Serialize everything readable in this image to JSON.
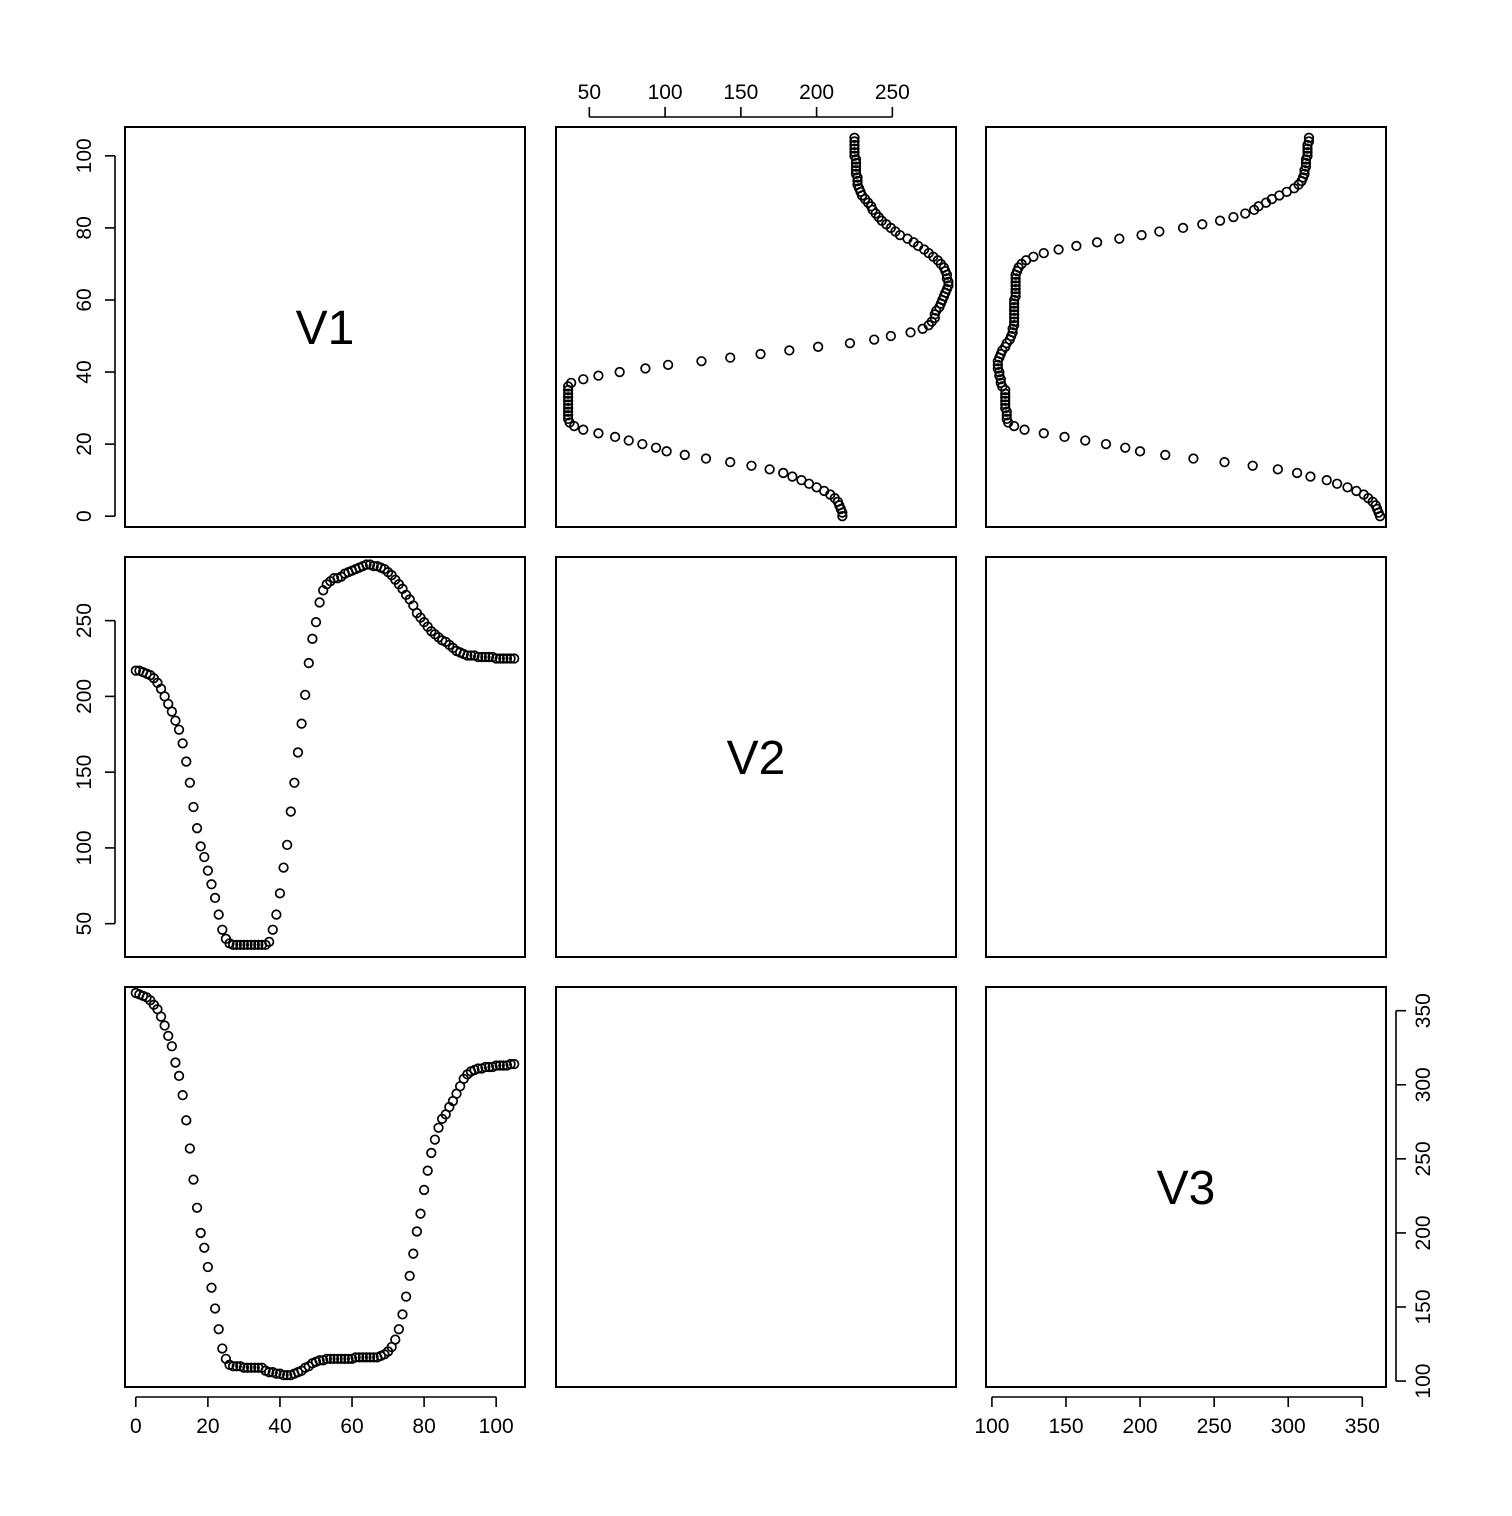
{
  "chart_data": {
    "type": "scatter",
    "variables": [
      "V1",
      "V2",
      "V3"
    ],
    "axes": {
      "V1": {
        "ticks": [
          0,
          20,
          40,
          60,
          80,
          100
        ],
        "range": [
          -3,
          108
        ]
      },
      "V2": {
        "ticks": [
          50,
          100,
          150,
          200,
          250
        ],
        "range": [
          28,
          292
        ]
      },
      "V3": {
        "ticks": [
          100,
          150,
          200,
          250,
          300,
          350
        ],
        "range": [
          96,
          366
        ]
      }
    },
    "axis_placement": {
      "V1": {
        "side": "bottom",
        "label_side": "left"
      },
      "V2": {
        "side": "top",
        "label_side": "left"
      },
      "V3": {
        "side": "bottom",
        "label_side": "right"
      }
    },
    "series": [
      {
        "x_var": "V1",
        "y_var": "V2",
        "points": [
          [
            0,
            217
          ],
          [
            1,
            217
          ],
          [
            2,
            216
          ],
          [
            3,
            215
          ],
          [
            4,
            214
          ],
          [
            5,
            212
          ],
          [
            6,
            209
          ],
          [
            7,
            205
          ],
          [
            8,
            200
          ],
          [
            9,
            195
          ],
          [
            10,
            190
          ],
          [
            11,
            184
          ],
          [
            12,
            178
          ],
          [
            13,
            169
          ],
          [
            14,
            157
          ],
          [
            15,
            143
          ],
          [
            16,
            127
          ],
          [
            17,
            113
          ],
          [
            18,
            101
          ],
          [
            19,
            94
          ],
          [
            20,
            85
          ],
          [
            21,
            76
          ],
          [
            22,
            67
          ],
          [
            23,
            56
          ],
          [
            24,
            46
          ],
          [
            25,
            40
          ],
          [
            26,
            37
          ],
          [
            27,
            36
          ],
          [
            28,
            36
          ],
          [
            29,
            36
          ],
          [
            30,
            36
          ],
          [
            31,
            36
          ],
          [
            32,
            36
          ],
          [
            33,
            36
          ],
          [
            34,
            36
          ],
          [
            35,
            36
          ],
          [
            36,
            36
          ],
          [
            37,
            38
          ],
          [
            38,
            46
          ],
          [
            39,
            56
          ],
          [
            40,
            70
          ],
          [
            41,
            87
          ],
          [
            42,
            102
          ],
          [
            43,
            124
          ],
          [
            44,
            143
          ],
          [
            45,
            163
          ],
          [
            46,
            182
          ],
          [
            47,
            201
          ],
          [
            48,
            222
          ],
          [
            49,
            238
          ],
          [
            50,
            249
          ],
          [
            51,
            262
          ],
          [
            52,
            270
          ],
          [
            53,
            274
          ],
          [
            54,
            276
          ],
          [
            55,
            278
          ],
          [
            56,
            278
          ],
          [
            57,
            279
          ],
          [
            58,
            281
          ],
          [
            59,
            282
          ],
          [
            60,
            283
          ],
          [
            61,
            284
          ],
          [
            62,
            285
          ],
          [
            63,
            286
          ],
          [
            64,
            287
          ],
          [
            65,
            287
          ],
          [
            66,
            286
          ],
          [
            67,
            286
          ],
          [
            68,
            285
          ],
          [
            69,
            284
          ],
          [
            70,
            282
          ],
          [
            71,
            280
          ],
          [
            72,
            277
          ],
          [
            73,
            274
          ],
          [
            74,
            271
          ],
          [
            75,
            267
          ],
          [
            76,
            264
          ],
          [
            77,
            260
          ],
          [
            78,
            255
          ],
          [
            79,
            252
          ],
          [
            80,
            249
          ],
          [
            81,
            246
          ],
          [
            82,
            243
          ],
          [
            83,
            241
          ],
          [
            84,
            239
          ],
          [
            85,
            237
          ],
          [
            86,
            236
          ],
          [
            87,
            234
          ],
          [
            88,
            232
          ],
          [
            89,
            230
          ],
          [
            90,
            229
          ],
          [
            91,
            228
          ],
          [
            92,
            227
          ],
          [
            93,
            227
          ],
          [
            94,
            227
          ],
          [
            95,
            226
          ],
          [
            96,
            226
          ],
          [
            97,
            226
          ],
          [
            98,
            226
          ],
          [
            99,
            226
          ],
          [
            100,
            225
          ],
          [
            101,
            225
          ],
          [
            102,
            225
          ],
          [
            103,
            225
          ],
          [
            104,
            225
          ],
          [
            105,
            225
          ]
        ]
      },
      {
        "x_var": "V1",
        "y_var": "V3",
        "points": [
          [
            0,
            362
          ],
          [
            1,
            361
          ],
          [
            2,
            360
          ],
          [
            3,
            359
          ],
          [
            4,
            357
          ],
          [
            5,
            354
          ],
          [
            6,
            351
          ],
          [
            7,
            346
          ],
          [
            8,
            340
          ],
          [
            9,
            333
          ],
          [
            10,
            326
          ],
          [
            11,
            315
          ],
          [
            12,
            306
          ],
          [
            13,
            293
          ],
          [
            14,
            276
          ],
          [
            15,
            257
          ],
          [
            16,
            236
          ],
          [
            17,
            217
          ],
          [
            18,
            200
          ],
          [
            19,
            190
          ],
          [
            20,
            177
          ],
          [
            21,
            163
          ],
          [
            22,
            149
          ],
          [
            23,
            135
          ],
          [
            24,
            122
          ],
          [
            25,
            115
          ],
          [
            26,
            111
          ],
          [
            27,
            110
          ],
          [
            28,
            110
          ],
          [
            29,
            110
          ],
          [
            30,
            109
          ],
          [
            31,
            109
          ],
          [
            32,
            109
          ],
          [
            33,
            109
          ],
          [
            34,
            109
          ],
          [
            35,
            109
          ],
          [
            36,
            107
          ],
          [
            37,
            106
          ],
          [
            38,
            106
          ],
          [
            39,
            105
          ],
          [
            40,
            105
          ],
          [
            41,
            104
          ],
          [
            42,
            104
          ],
          [
            43,
            104
          ],
          [
            44,
            105
          ],
          [
            45,
            106
          ],
          [
            46,
            107
          ],
          [
            47,
            109
          ],
          [
            48,
            110
          ],
          [
            49,
            112
          ],
          [
            50,
            113
          ],
          [
            51,
            114
          ],
          [
            52,
            114
          ],
          [
            53,
            115
          ],
          [
            54,
            115
          ],
          [
            55,
            115
          ],
          [
            56,
            115
          ],
          [
            57,
            115
          ],
          [
            58,
            115
          ],
          [
            59,
            115
          ],
          [
            60,
            115
          ],
          [
            61,
            116
          ],
          [
            62,
            116
          ],
          [
            63,
            116
          ],
          [
            64,
            116
          ],
          [
            65,
            116
          ],
          [
            66,
            116
          ],
          [
            67,
            116
          ],
          [
            68,
            117
          ],
          [
            69,
            118
          ],
          [
            70,
            120
          ],
          [
            71,
            123
          ],
          [
            72,
            128
          ],
          [
            73,
            135
          ],
          [
            74,
            145
          ],
          [
            75,
            157
          ],
          [
            76,
            171
          ],
          [
            77,
            186
          ],
          [
            78,
            201
          ],
          [
            79,
            213
          ],
          [
            80,
            229
          ],
          [
            81,
            242
          ],
          [
            82,
            254
          ],
          [
            83,
            263
          ],
          [
            84,
            271
          ],
          [
            85,
            277
          ],
          [
            86,
            280
          ],
          [
            87,
            285
          ],
          [
            88,
            289
          ],
          [
            89,
            294
          ],
          [
            90,
            299
          ],
          [
            91,
            304
          ],
          [
            92,
            307
          ],
          [
            93,
            309
          ],
          [
            94,
            310
          ],
          [
            95,
            311
          ],
          [
            96,
            311
          ],
          [
            97,
            312
          ],
          [
            98,
            312
          ],
          [
            99,
            312
          ],
          [
            100,
            313
          ],
          [
            101,
            313
          ],
          [
            102,
            313
          ],
          [
            103,
            313
          ],
          [
            104,
            314
          ],
          [
            105,
            314
          ]
        ]
      }
    ]
  }
}
